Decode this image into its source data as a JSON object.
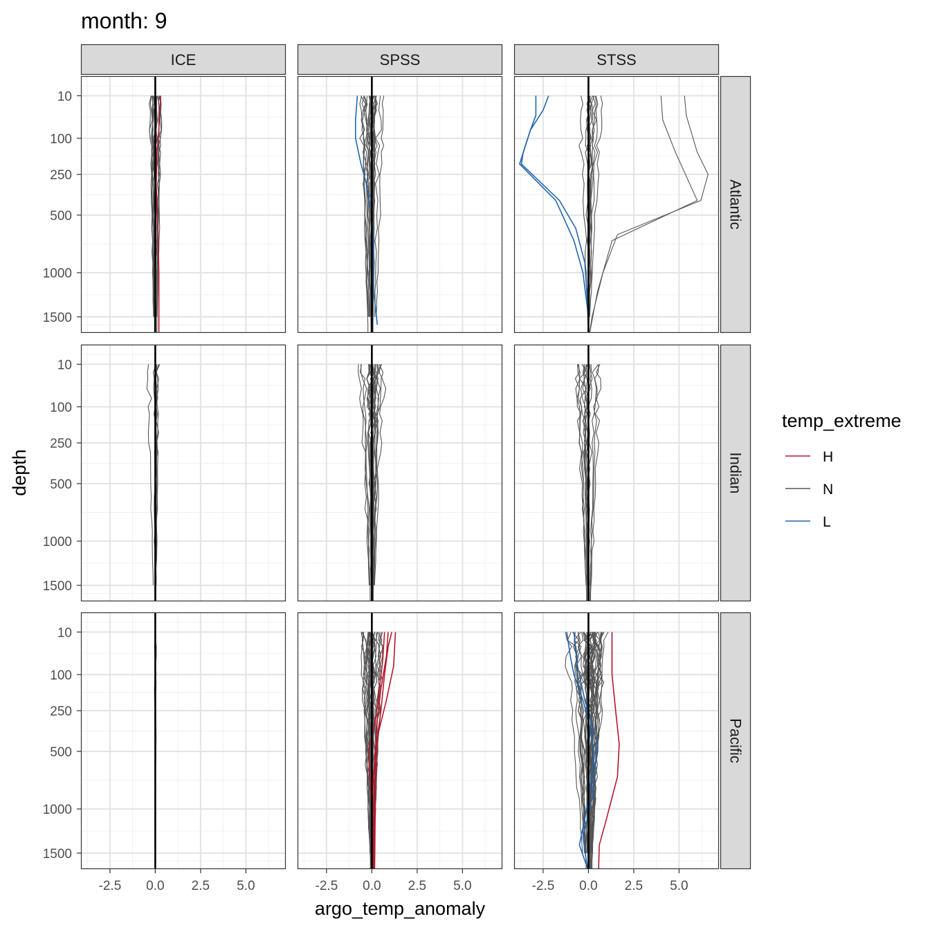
{
  "chart_data": {
    "type": "line",
    "title": "month: 9",
    "xlabel": "argo_temp_anomaly",
    "ylabel": "depth",
    "columns": [
      "ICE",
      "SPSS",
      "STSS"
    ],
    "rows": [
      "Atlantic",
      "Indian",
      "Pacific"
    ],
    "x_ticks": [
      "-2.5",
      "0.0",
      "2.5",
      "5.0"
    ],
    "y_ticks": [
      "10",
      "100",
      "250",
      "500",
      "1000",
      "1500"
    ],
    "xlim": [
      -4.1,
      7.2
    ],
    "ylim_sqrt_depth": [
      0,
      41.3
    ],
    "y_scale": "reversed sqrt",
    "depths": [
      10,
      20,
      30,
      50,
      75,
      100,
      125,
      150,
      200,
      250,
      300,
      400,
      500,
      600,
      700,
      800,
      900,
      1000,
      1100,
      1200,
      1300,
      1400,
      1500,
      1600,
      1700,
      1800
    ],
    "grid": true,
    "legend": {
      "title": "temp_extreme",
      "position": "right",
      "items": [
        {
          "label": "H",
          "color": "#b2182b"
        },
        {
          "label": "N",
          "color": "#555555"
        },
        {
          "label": "L",
          "color": "#2166ac"
        }
      ]
    },
    "panels": [
      {
        "column": "ICE",
        "row": "Atlantic",
        "n_profiles": 18,
        "x_spread_top": 0.5,
        "x_spread_bottom": 0.15,
        "center": 0.0,
        "extremes": [
          {
            "class": "H",
            "points": [
              [
                0.3,
                10
              ],
              [
                0.25,
                30
              ],
              [
                0.2,
                75
              ],
              [
                0.1,
                150
              ],
              [
                0.05,
                300
              ],
              [
                0.15,
                600
              ],
              [
                0.2,
                1000
              ],
              [
                0.2,
                1500
              ],
              [
                0.2,
                1700
              ]
            ]
          }
        ]
      },
      {
        "column": "SPSS",
        "row": "Atlantic",
        "n_profiles": 24,
        "x_spread_top": 0.9,
        "x_spread_bottom": 0.3,
        "center": 0.0,
        "extremes": [
          {
            "class": "L",
            "points": [
              [
                -0.8,
                10
              ],
              [
                -0.9,
                50
              ],
              [
                -0.9,
                100
              ],
              [
                -0.6,
                200
              ],
              [
                -0.3,
                300
              ],
              [
                0.0,
                500
              ],
              [
                0.1,
                800
              ],
              [
                0.1,
                1200
              ],
              [
                0.3,
                1600
              ]
            ]
          }
        ]
      },
      {
        "column": "STSS",
        "row": "Atlantic",
        "n_profiles": 12,
        "x_spread_top": 1.0,
        "x_spread_bottom": 0.05,
        "center": 0.0,
        "extremes": [
          {
            "class": "L",
            "points": [
              [
                -2.2,
                10
              ],
              [
                -2.5,
                30
              ],
              [
                -3.2,
                75
              ],
              [
                -3.6,
                150
              ],
              [
                -3.7,
                200
              ],
              [
                -1.6,
                400
              ],
              [
                -0.7,
                600
              ],
              [
                -0.2,
                900
              ],
              [
                0.0,
                1500
              ],
              [
                0.0,
                1800
              ]
            ]
          },
          {
            "class": "L",
            "points": [
              [
                -2.9,
                10
              ],
              [
                -2.9,
                40
              ],
              [
                -3.2,
                75
              ],
              [
                -3.8,
                200
              ],
              [
                -1.8,
                400
              ],
              [
                -0.8,
                700
              ],
              [
                -0.3,
                1000
              ],
              [
                0.0,
                1500
              ],
              [
                0.0,
                1800
              ]
            ]
          }
        ],
        "outliers": [
          {
            "class": "N",
            "points": [
              [
                5.3,
                10
              ],
              [
                5.4,
                40
              ],
              [
                6.0,
                150
              ],
              [
                6.6,
                250
              ],
              [
                6.2,
                400
              ],
              [
                1.6,
                650
              ],
              [
                0.8,
                1000
              ],
              [
                0.2,
                1500
              ],
              [
                0.0,
                1800
              ]
            ]
          },
          {
            "class": "N",
            "points": [
              [
                4.0,
                10
              ],
              [
                4.1,
                50
              ],
              [
                4.8,
                150
              ],
              [
                6.0,
                400
              ],
              [
                1.3,
                700
              ],
              [
                0.5,
                1200
              ],
              [
                0.0,
                1800
              ]
            ]
          }
        ]
      },
      {
        "column": "ICE",
        "row": "Indian",
        "n_profiles": 6,
        "x_spread_top": 0.8,
        "x_spread_bottom": 0.2,
        "center": 0.0,
        "extremes": []
      },
      {
        "column": "SPSS",
        "row": "Indian",
        "n_profiles": 22,
        "x_spread_top": 1.0,
        "x_spread_bottom": 0.2,
        "center": 0.0,
        "extremes": []
      },
      {
        "column": "STSS",
        "row": "Indian",
        "n_profiles": 14,
        "x_spread_top": 1.2,
        "x_spread_bottom": 0.2,
        "center": 0.0,
        "extremes": []
      },
      {
        "column": "ICE",
        "row": "Pacific",
        "n_profiles": 4,
        "x_spread_top": 0.3,
        "x_spread_bottom": 0.05,
        "center": 0.0,
        "extremes": []
      },
      {
        "column": "SPSS",
        "row": "Pacific",
        "n_profiles": 30,
        "x_spread_top": 1.0,
        "x_spread_bottom": 0.15,
        "center": 0.0,
        "extremes": [
          {
            "class": "H",
            "points": [
              [
                1.1,
                10
              ],
              [
                0.9,
                30
              ],
              [
                0.7,
                100
              ],
              [
                0.5,
                250
              ],
              [
                0.2,
                500
              ],
              [
                0.15,
                1000
              ],
              [
                0.1,
                1500
              ],
              [
                0.1,
                1800
              ]
            ]
          },
          {
            "class": "H",
            "points": [
              [
                0.9,
                10
              ],
              [
                0.8,
                50
              ],
              [
                0.5,
                150
              ],
              [
                0.3,
                300
              ],
              [
                0.1,
                700
              ],
              [
                0.1,
                1200
              ],
              [
                0.1,
                1800
              ]
            ]
          },
          {
            "class": "H",
            "points": [
              [
                1.3,
                10
              ],
              [
                1.2,
                75
              ],
              [
                0.8,
                200
              ],
              [
                0.3,
                400
              ],
              [
                0.2,
                800
              ],
              [
                0.15,
                1800
              ]
            ]
          },
          {
            "class": "H",
            "points": [
              [
                0.7,
                10
              ],
              [
                0.6,
                60
              ],
              [
                0.2,
                300
              ],
              [
                -0.2,
                500
              ],
              [
                0.0,
                1000
              ],
              [
                0.05,
                1800
              ]
            ]
          }
        ]
      },
      {
        "column": "STSS",
        "row": "Pacific",
        "n_profiles": 40,
        "x_spread_top": 1.4,
        "x_spread_bottom": 0.3,
        "center": 0.0,
        "extremes": [
          {
            "class": "H",
            "points": [
              [
                1.3,
                10
              ],
              [
                1.3,
                100
              ],
              [
                1.5,
                250
              ],
              [
                1.7,
                450
              ],
              [
                1.6,
                700
              ],
              [
                1.0,
                1100
              ],
              [
                0.6,
                1400
              ],
              [
                0.55,
                1800
              ]
            ]
          },
          {
            "class": "L",
            "points": [
              [
                -1.2,
                10
              ],
              [
                -1.0,
                50
              ],
              [
                -0.8,
                100
              ],
              [
                -0.3,
                200
              ],
              [
                0.0,
                300
              ],
              [
                0.3,
                500
              ],
              [
                0.1,
                800
              ],
              [
                -0.2,
                1100
              ],
              [
                -0.5,
                1400
              ],
              [
                0.1,
                1800
              ]
            ]
          },
          {
            "class": "L",
            "points": [
              [
                -0.8,
                10
              ],
              [
                -0.6,
                75
              ],
              [
                -0.2,
                200
              ],
              [
                0.5,
                450
              ],
              [
                0.2,
                900
              ],
              [
                -0.3,
                1300
              ],
              [
                0.0,
                1800
              ]
            ]
          }
        ]
      }
    ]
  }
}
